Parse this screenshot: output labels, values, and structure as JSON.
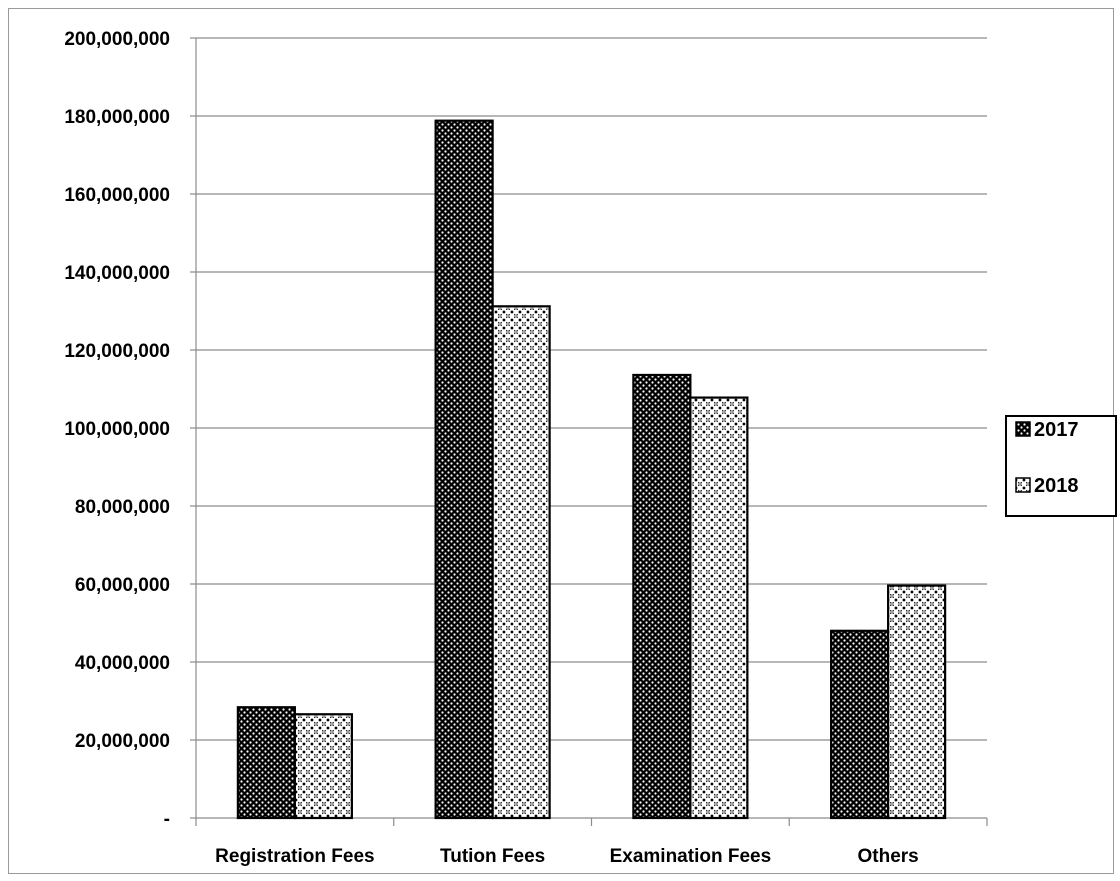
{
  "chart_data": {
    "type": "bar",
    "title": "",
    "xlabel": "",
    "ylabel": "",
    "categories": [
      "Registration Fees",
      "Tution Fees",
      "Examination Fees",
      "Others"
    ],
    "series": [
      {
        "name": "2017",
        "values": [
          28400000,
          178800000,
          113600000,
          48000000
        ],
        "color": "#000000",
        "pattern": "white-dots-on-black"
      },
      {
        "name": "2018",
        "values": [
          26600000,
          131200000,
          107800000,
          59600000
        ],
        "color": "#ffffff",
        "pattern": "black-dotted-crosshatch-on-white"
      }
    ],
    "ylim": [
      0,
      200000000
    ],
    "yticks": [
      0,
      20000000,
      40000000,
      60000000,
      80000000,
      100000000,
      120000000,
      140000000,
      160000000,
      180000000,
      200000000
    ],
    "ytick_labels": [
      "-",
      "20,000,000",
      "40,000,000",
      "60,000,000",
      "80,000,000",
      "100,000,000",
      "120,000,000",
      "140,000,000",
      "160,000,000",
      "180,000,000",
      "200,000,000"
    ],
    "grid": true,
    "legend_position": "right"
  }
}
